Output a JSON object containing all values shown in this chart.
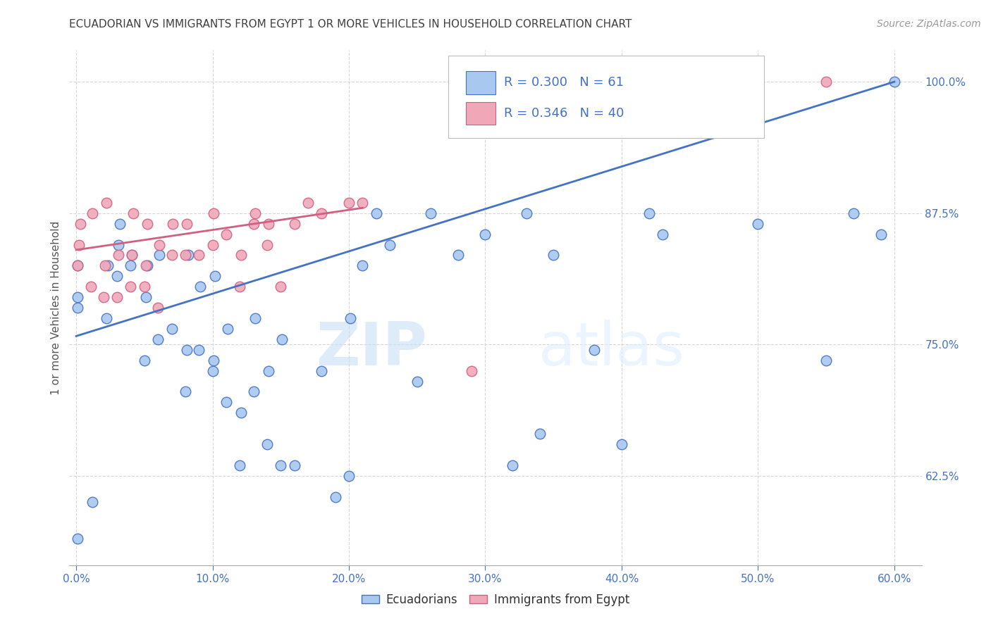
{
  "title": "ECUADORIAN VS IMMIGRANTS FROM EGYPT 1 OR MORE VEHICLES IN HOUSEHOLD CORRELATION CHART",
  "source": "Source: ZipAtlas.com",
  "ylabel_label": "1 or more Vehicles in Household",
  "legend_label1": "Ecuadorians",
  "legend_label2": "Immigrants from Egypt",
  "R1": "0.300",
  "N1": "61",
  "R2": "0.346",
  "N2": "40",
  "color_blue": "#a8c8f0",
  "color_pink": "#f0a8b8",
  "color_line_blue": "#4472c4",
  "color_line_pink": "#d06080",
  "watermark_zip": "ZIP",
  "watermark_atlas": "atlas",
  "background_color": "#ffffff",
  "grid_color": "#cccccc",
  "title_color": "#404040",
  "blue_scatter_x": [
    0.001,
    0.001,
    0.001,
    0.001,
    0.012,
    0.022,
    0.023,
    0.03,
    0.031,
    0.032,
    0.04,
    0.041,
    0.05,
    0.051,
    0.052,
    0.06,
    0.061,
    0.07,
    0.08,
    0.081,
    0.082,
    0.09,
    0.091,
    0.1,
    0.101,
    0.102,
    0.11,
    0.111,
    0.12,
    0.121,
    0.13,
    0.131,
    0.14,
    0.141,
    0.15,
    0.151,
    0.16,
    0.18,
    0.19,
    0.2,
    0.201,
    0.21,
    0.22,
    0.23,
    0.25,
    0.26,
    0.28,
    0.3,
    0.32,
    0.33,
    0.34,
    0.35,
    0.38,
    0.4,
    0.42,
    0.43,
    0.5,
    0.55,
    0.57,
    0.59,
    0.6
  ],
  "blue_scatter_y": [
    0.565,
    0.785,
    0.795,
    0.825,
    0.6,
    0.775,
    0.825,
    0.815,
    0.845,
    0.865,
    0.825,
    0.835,
    0.735,
    0.795,
    0.825,
    0.755,
    0.835,
    0.765,
    0.705,
    0.745,
    0.835,
    0.745,
    0.805,
    0.725,
    0.735,
    0.815,
    0.695,
    0.765,
    0.635,
    0.685,
    0.705,
    0.775,
    0.655,
    0.725,
    0.635,
    0.755,
    0.635,
    0.725,
    0.605,
    0.625,
    0.775,
    0.825,
    0.875,
    0.845,
    0.715,
    0.875,
    0.835,
    0.855,
    0.635,
    0.875,
    0.665,
    0.835,
    0.745,
    0.655,
    0.875,
    0.855,
    0.865,
    0.735,
    0.875,
    0.855,
    1.0
  ],
  "pink_scatter_x": [
    0.001,
    0.002,
    0.003,
    0.011,
    0.012,
    0.02,
    0.021,
    0.022,
    0.03,
    0.031,
    0.04,
    0.041,
    0.042,
    0.05,
    0.051,
    0.052,
    0.06,
    0.061,
    0.07,
    0.071,
    0.08,
    0.081,
    0.09,
    0.1,
    0.101,
    0.11,
    0.12,
    0.121,
    0.13,
    0.131,
    0.14,
    0.141,
    0.15,
    0.16,
    0.17,
    0.18,
    0.2,
    0.21,
    0.29,
    0.55
  ],
  "pink_scatter_y": [
    0.825,
    0.845,
    0.865,
    0.805,
    0.875,
    0.795,
    0.825,
    0.885,
    0.795,
    0.835,
    0.805,
    0.835,
    0.875,
    0.805,
    0.825,
    0.865,
    0.785,
    0.845,
    0.835,
    0.865,
    0.835,
    0.865,
    0.835,
    0.845,
    0.875,
    0.855,
    0.805,
    0.835,
    0.865,
    0.875,
    0.845,
    0.865,
    0.805,
    0.865,
    0.885,
    0.875,
    0.885,
    0.885,
    0.725,
    1.0
  ],
  "blue_line_x": [
    0.0,
    0.6
  ],
  "blue_line_y": [
    0.758,
    1.0
  ],
  "pink_line_x": [
    0.0,
    0.21
  ],
  "pink_line_y": [
    0.84,
    0.88
  ],
  "xlim": [
    -0.005,
    0.62
  ],
  "ylim": [
    0.54,
    1.03
  ],
  "ytick_vals": [
    0.625,
    0.75,
    0.875,
    1.0
  ],
  "ytick_labels": [
    "62.5%",
    "75.0%",
    "87.5%",
    "100.0%"
  ],
  "xtick_vals": [
    0.0,
    0.1,
    0.2,
    0.3,
    0.4,
    0.5,
    0.6
  ],
  "xtick_labels": [
    "0.0%",
    "10.0%",
    "20.0%",
    "30.0%",
    "40.0%",
    "50.0%",
    "60.0%"
  ]
}
